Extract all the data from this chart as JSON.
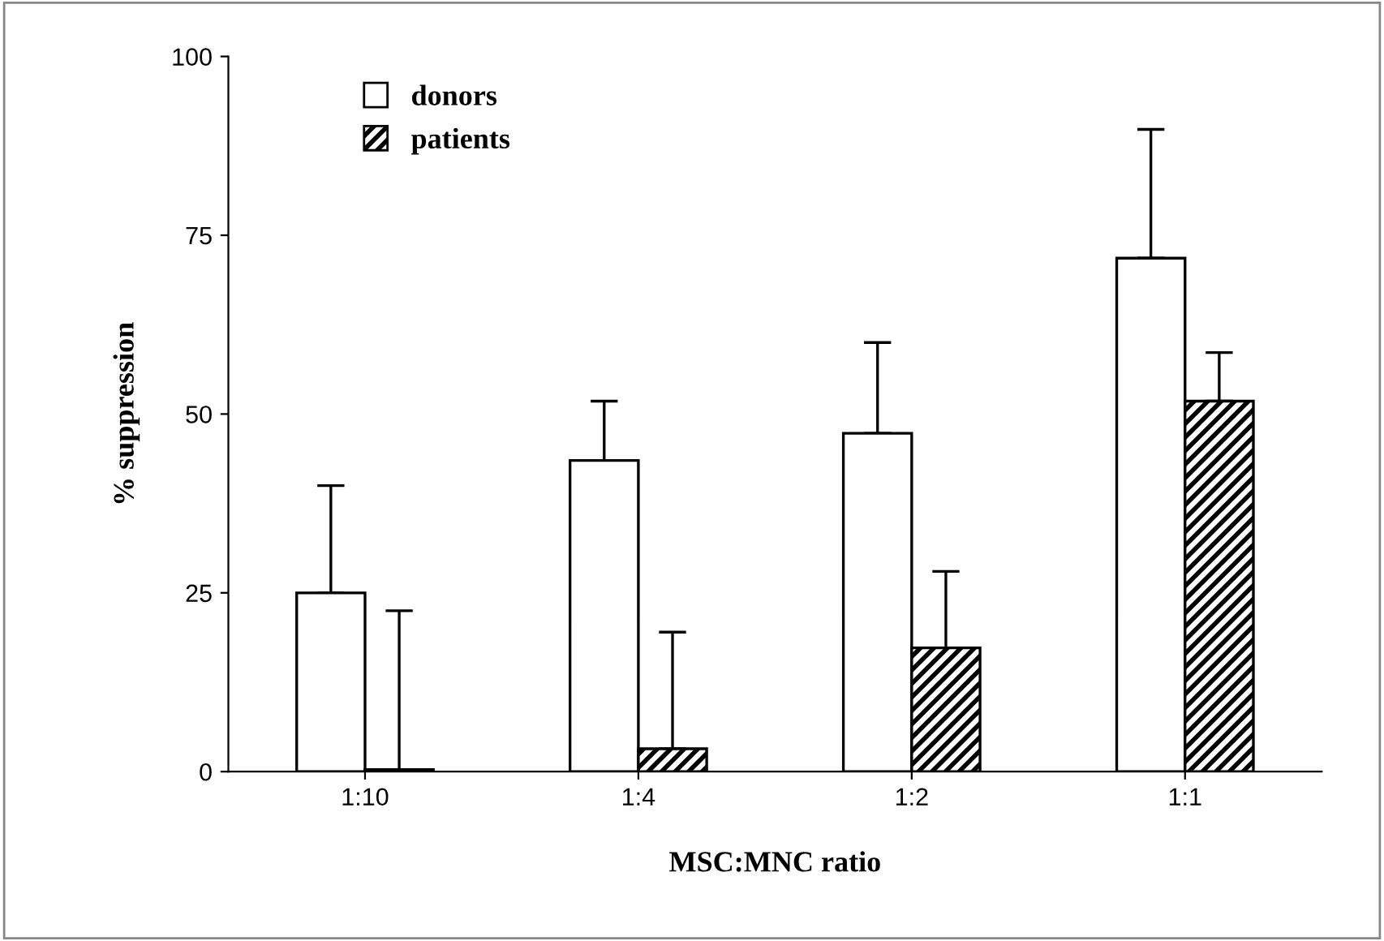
{
  "chart_data": {
    "type": "bar",
    "xlabel": "MSC:MNC ratio",
    "ylabel": "% suppression",
    "categories": [
      "1:10",
      "1:4",
      "1:2",
      "1:1"
    ],
    "series": [
      {
        "name": "donors",
        "color": "#ffffff",
        "values": [
          25,
          43.5,
          47.3,
          71.8
        ],
        "errors": [
          [
            25,
            40
          ],
          [
            43.5,
            51.8
          ],
          [
            47.3,
            60
          ],
          [
            71.8,
            89.8
          ]
        ]
      },
      {
        "name": "patients",
        "color": "#000000",
        "values": [
          0.3,
          3.2,
          17.3,
          51.8
        ],
        "errors": [
          [
            0.3,
            22.5
          ],
          [
            3.2,
            19.5
          ],
          [
            17.3,
            28
          ],
          [
            51.8,
            58.6
          ]
        ]
      }
    ],
    "ylim": [
      0,
      100
    ],
    "yticks": [
      0,
      25,
      50,
      75,
      100
    ],
    "grid": false,
    "legend": "top left"
  }
}
